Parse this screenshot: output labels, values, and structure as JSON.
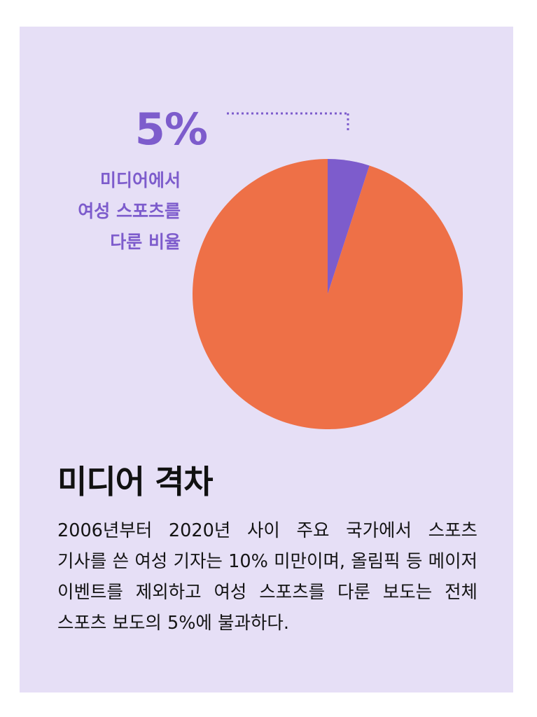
{
  "colors": {
    "background": "#e6dff6",
    "accent": "#7d5ccc",
    "main_slice": "#ee7047"
  },
  "callout": {
    "value": "5%",
    "caption_lines": [
      "미디어에서",
      "여성 스포츠를",
      "다룬 비율"
    ]
  },
  "chart_data": {
    "type": "pie",
    "slices": [
      {
        "label": "미디어에서 여성 스포츠를 다룬 비율",
        "value": 5,
        "color": "#7d5ccc"
      },
      {
        "label": "",
        "value": 95,
        "color": "#ee7047"
      }
    ],
    "start_angle_deg": 0,
    "direction": "clockwise",
    "title": "",
    "legend": "none"
  },
  "headline": "미디어 격차",
  "body": "2006년부터 2020년 사이 주요 국가에서 스포츠 기사를 쓴 여성 기자는 10% 미만이며, 올림픽 등 메이저 이벤트를 제외하고 여성 스포츠를 다룬 보도는 전체 스포츠 보도의 5%에 불과하다."
}
